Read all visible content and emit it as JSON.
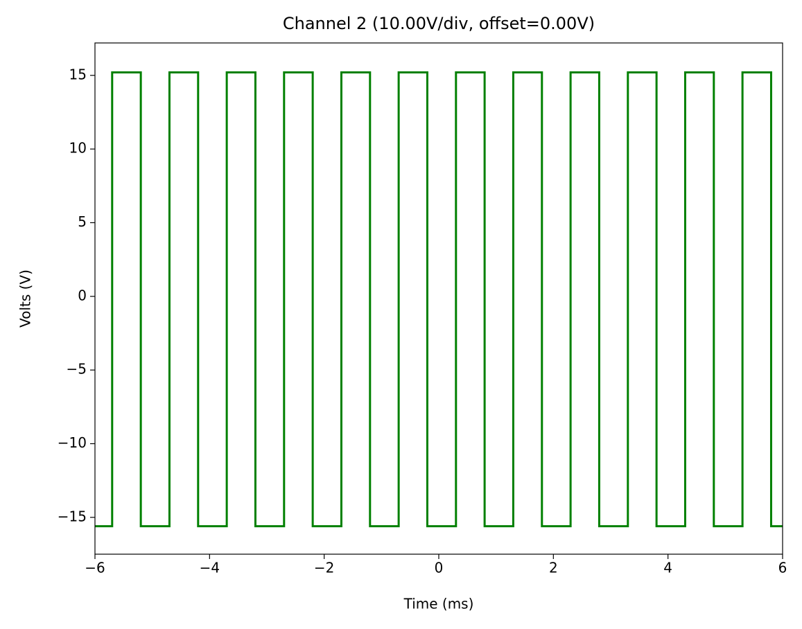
{
  "chart_data": {
    "type": "line",
    "title": "Channel 2 (10.00V/div, offset=0.00V)",
    "x_label": "Time (ms)",
    "y_label": "Volts (V)",
    "color": "#008000",
    "x": [
      -6,
      -5.7,
      -5.7,
      -5.2,
      -5.2,
      -4.7,
      -4.7,
      -4.2,
      -4.2,
      -3.7,
      -3.7,
      -3.2,
      -3.2,
      -2.7,
      -2.7,
      -2.2,
      -2.2,
      -1.7,
      -1.7,
      -1.2,
      -1.2,
      -0.7,
      -0.7,
      -0.2,
      -0.2,
      0.3,
      0.3,
      0.8,
      0.8,
      1.3,
      1.3,
      1.8,
      1.8,
      2.3,
      2.3,
      2.8,
      2.8,
      3.3,
      3.3,
      3.8,
      3.8,
      4.3,
      4.3,
      4.8,
      4.8,
      5.3,
      5.3,
      5.8,
      5.8,
      6
    ],
    "values": [
      -15.6,
      -15.6,
      15.2,
      15.2,
      -15.6,
      -15.6,
      15.2,
      15.2,
      -15.6,
      -15.6,
      15.2,
      15.2,
      -15.6,
      -15.6,
      15.2,
      15.2,
      -15.6,
      -15.6,
      15.2,
      15.2,
      -15.6,
      -15.6,
      15.2,
      15.2,
      -15.6,
      -15.6,
      15.2,
      15.2,
      -15.6,
      -15.6,
      15.2,
      15.2,
      -15.6,
      -15.6,
      15.2,
      15.2,
      -15.6,
      -15.6,
      15.2,
      15.2,
      -15.6,
      -15.6,
      15.2,
      15.2,
      -15.6,
      -15.6,
      15.2,
      15.2,
      -15.6,
      -15.6
    ],
    "xlim": [
      -6,
      6
    ],
    "xticks": [
      {
        "value": -6,
        "label": "−6"
      },
      {
        "value": -4,
        "label": "−4"
      },
      {
        "value": -2,
        "label": "−2"
      },
      0,
      2,
      4,
      6
    ],
    "ylim": [
      -17.5,
      17.2
    ],
    "yticks": [
      {
        "value": -15,
        "label": "−15"
      },
      {
        "value": -10,
        "label": "−10"
      },
      {
        "value": -5,
        "label": "−5"
      },
      0,
      5,
      10,
      15
    ]
  }
}
